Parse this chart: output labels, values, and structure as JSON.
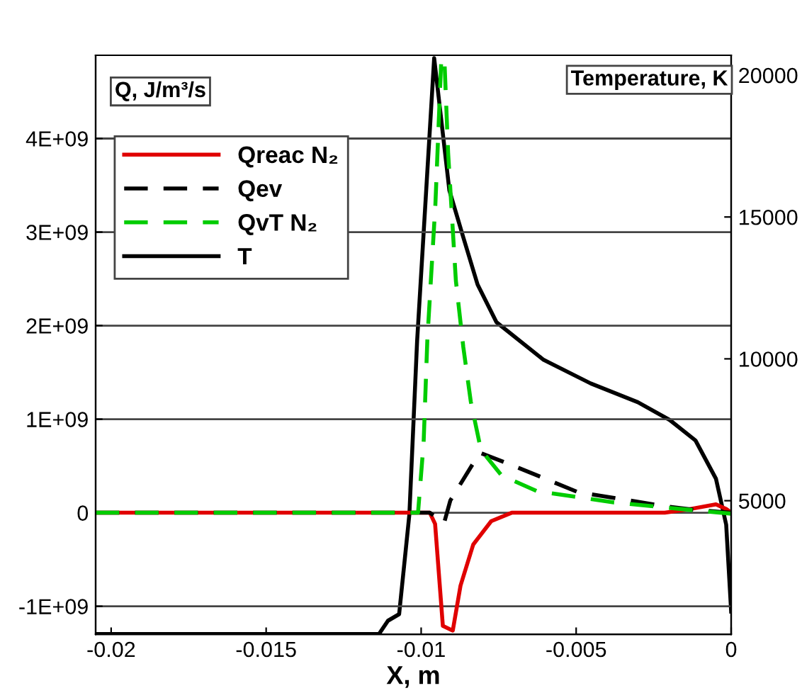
{
  "chart_data": {
    "type": "line",
    "xlabel": "X, m",
    "ylabel": "Q, J/m³/s",
    "y2label": "Temperature, K",
    "xlim": [
      -0.0205,
      0
    ],
    "xticks": [
      -0.02,
      -0.015,
      -0.01,
      -0.005,
      0
    ],
    "ylim": [
      -1300000000.0,
      4890000000.0
    ],
    "yticks": [
      {
        "value": -1000000000.0,
        "label": "-1E+09"
      },
      {
        "value": 0,
        "label": "0"
      },
      {
        "value": 1000000000.0,
        "label": "1E+09"
      },
      {
        "value": 2000000000.0,
        "label": "2E+09"
      },
      {
        "value": 3000000000.0,
        "label": "3E+09"
      },
      {
        "value": 4000000000.0,
        "label": "4E+09"
      }
    ],
    "y2lim": [
      290,
      20700
    ],
    "y2ticks": [
      5000,
      10000,
      15000,
      20000
    ],
    "grid": "y",
    "legend": "top left",
    "series": [
      {
        "name": "Qreac N₂",
        "color": "#e00000",
        "line_style": "solid",
        "x": [
          -0.0205,
          -0.00972,
          -0.00955,
          -0.0093,
          -0.00898,
          -0.00873,
          -0.00832,
          -0.00774,
          -0.00708,
          -0.00214,
          -0.00148,
          -0.00049,
          -0.00016,
          0
        ],
        "values": [
          0,
          0,
          -120000000.0,
          -1210000000.0,
          -1260000000.0,
          -780000000.0,
          -340000000.0,
          -90000000.0,
          0,
          0,
          30000000.0,
          90000000.0,
          40000000.0,
          0
        ]
      },
      {
        "name": "Qev",
        "color": "#000000",
        "line_style": "dashed",
        "x": [
          -0.0205,
          -0.00972,
          -0.00926,
          -0.00906,
          -0.00815,
          -0.0081,
          -0.00708,
          -0.00494,
          -0.00214,
          -0.00115,
          0
        ],
        "values": [
          0,
          0,
          -110000000.0,
          130000000.0,
          620000000.0,
          640000000.0,
          510000000.0,
          220000000.0,
          70000000.0,
          30000000.0,
          0
        ]
      },
      {
        "name": "QvT N₂",
        "color": "#00cc00",
        "line_style": "dashed",
        "x": [
          -0.0205,
          -0.0101,
          -0.01005,
          -0.00992,
          -0.0098,
          -0.00954,
          -0.00935,
          -0.00925,
          -0.00913,
          -0.00888,
          -0.00864,
          -0.0084,
          -0.00807,
          -0.00741,
          -0.00626,
          -0.00379,
          -0.00132,
          0
        ],
        "values": [
          0,
          0,
          210000000.0,
          750000000.0,
          1850000000.0,
          3300000000.0,
          4850000000.0,
          4850000000.0,
          3850000000.0,
          2480000000.0,
          1770000000.0,
          1190000000.0,
          670000000.0,
          400000000.0,
          230000000.0,
          110000000.0,
          30000000.0,
          -10000000.0
        ]
      },
      {
        "name": "T",
        "color": "#000000",
        "line_style": "solid",
        "axis": "y2",
        "x": [
          -0.0205,
          -0.01136,
          -0.01107,
          -0.01071,
          -0.01038,
          -0.01013,
          -0.00958,
          -0.00909,
          -0.00864,
          -0.00818,
          -0.00757,
          -0.00605,
          -0.00453,
          -0.00301,
          -0.00198,
          -0.00115,
          -0.00049,
          -0.00016,
          0
        ],
        "values": [
          300,
          300,
          770,
          1000,
          4514,
          10634,
          20600,
          15940,
          14280,
          12620,
          11290,
          9965,
          9133,
          8470,
          7844,
          7124,
          5774,
          4154,
          1094
        ]
      }
    ]
  }
}
